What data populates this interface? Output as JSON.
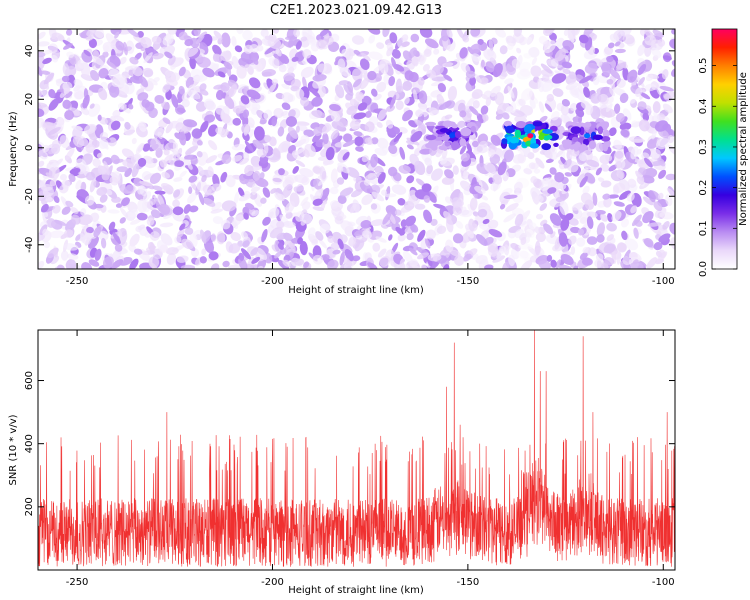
{
  "title": "C2E1.2023.021.09.42.G13",
  "chart_data": [
    {
      "type": "heatmap",
      "xlabel": "Height of straight line (km)",
      "ylabel": "Frequency (Hz)",
      "xlim": [
        -260,
        -97
      ],
      "ylim": [
        -50,
        49
      ],
      "x_ticks": [
        -250,
        -200,
        -150,
        -100
      ],
      "y_ticks": [
        -40,
        -20,
        0,
        20,
        40
      ],
      "colorbar": {
        "label": "Normalized spectral amplitude",
        "range": [
          0,
          0.59
        ],
        "ticks": [
          0.0,
          0.1,
          0.2,
          0.3,
          0.4,
          0.5
        ],
        "colormap": [
          "#ffffff",
          "#ead8fa",
          "#b98cf2",
          "#7a2ee8",
          "#3600e0",
          "#0050ff",
          "#00c8ff",
          "#00e090",
          "#40e020",
          "#c0e000",
          "#ffd000",
          "#ff8000",
          "#ff2000",
          "#ff0060"
        ]
      },
      "signal_band": {
        "frequency_hz": 5,
        "segments": [
          {
            "x_range": [
              -160,
              -148
            ],
            "peak": 0.22
          },
          {
            "x_range": [
              -141,
              -127
            ],
            "peak": 0.59
          },
          {
            "x_range": [
              -125,
              -114
            ],
            "peak": 0.24
          }
        ]
      },
      "noise_level": 0.06
    },
    {
      "type": "line",
      "xlabel": "Height of straight line (km)",
      "ylabel": "SNR (10 * v/v)",
      "xlim": [
        -260,
        -97
      ],
      "ylim": [
        0,
        760
      ],
      "x_ticks": [
        -250,
        -200,
        -150,
        -100
      ],
      "y_ticks": [
        200,
        400,
        600
      ],
      "color": "#f03030",
      "baseline_mean": 150,
      "baseline_spread": [
        10,
        300
      ],
      "peaks": [
        {
          "x": -155.5,
          "y": 580
        },
        {
          "x": -153.5,
          "y": 720
        },
        {
          "x": -152,
          "y": 460
        },
        {
          "x": -133,
          "y": 760
        },
        {
          "x": -131.5,
          "y": 630
        },
        {
          "x": -130,
          "y": 630
        },
        {
          "x": -120.5,
          "y": 740
        },
        {
          "x": -118,
          "y": 500
        },
        {
          "x": -227,
          "y": 500
        },
        {
          "x": -99,
          "y": 500
        }
      ]
    }
  ]
}
